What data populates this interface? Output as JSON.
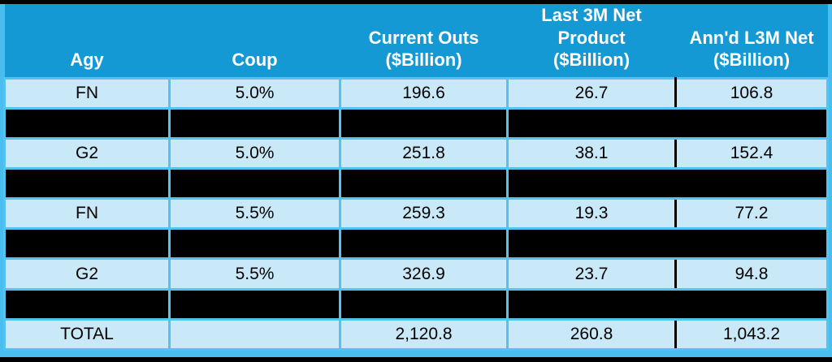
{
  "table": {
    "columns": [
      {
        "key": "agy",
        "label": "Agy"
      },
      {
        "key": "coup",
        "label": "Coup"
      },
      {
        "key": "current-outs",
        "label": "Current Outs\n($Billion)"
      },
      {
        "key": "last-3m-net",
        "label": "Last 3M Net\nProduct\n($Billion)"
      },
      {
        "key": "annd-l3m-net",
        "label": "Ann'd L3M Net\n($Billion)"
      }
    ],
    "rows": [
      {
        "type": "data",
        "cells": [
          "FN",
          "5.0%",
          "196.6",
          "26.7",
          "106.8"
        ]
      },
      {
        "type": "redacted",
        "cells": [
          "",
          "",
          "",
          "",
          ""
        ]
      },
      {
        "type": "data",
        "cells": [
          "G2",
          "5.0%",
          "251.8",
          "38.1",
          "152.4"
        ]
      },
      {
        "type": "redacted",
        "cells": [
          "",
          "",
          "",
          "",
          ""
        ]
      },
      {
        "type": "data",
        "cells": [
          "FN",
          "5.5%",
          "259.3",
          "19.3",
          "77.2"
        ]
      },
      {
        "type": "redacted",
        "cells": [
          "",
          "",
          "",
          "",
          ""
        ]
      },
      {
        "type": "data",
        "cells": [
          "G2",
          "5.5%",
          "326.9",
          "23.7",
          "94.8"
        ]
      },
      {
        "type": "redacted",
        "cells": [
          "",
          "",
          "",
          "",
          ""
        ]
      },
      {
        "type": "total",
        "cells": [
          "TOTAL",
          "",
          "2,120.8",
          "260.8",
          "1,043.2"
        ]
      }
    ],
    "colors": {
      "header_bg": "#1599D5",
      "header_text": "#FFFFFF",
      "row_bg": "#C9E9F8",
      "grid_blue": "#55C3F0",
      "redacted_black": "#000000",
      "outer_strip_blue": "#49BEEE",
      "body_text": "#000000"
    }
  },
  "chart_data": {
    "type": "table",
    "columns": [
      "Agy",
      "Coup",
      "Current Outs ($Billion)",
      "Last 3M Net Product ($Billion)",
      "Ann'd L3M Net ($Billion)"
    ],
    "rows": [
      {
        "agy": "FN",
        "coup": "5.0%",
        "current_outs_bn": 196.6,
        "last_3m_net_product_bn": 26.7,
        "annd_l3m_net_bn": 106.8
      },
      {
        "agy": null,
        "coup": null,
        "current_outs_bn": null,
        "last_3m_net_product_bn": null,
        "annd_l3m_net_bn": null,
        "redacted": true
      },
      {
        "agy": "G2",
        "coup": "5.0%",
        "current_outs_bn": 251.8,
        "last_3m_net_product_bn": 38.1,
        "annd_l3m_net_bn": 152.4
      },
      {
        "agy": null,
        "coup": null,
        "current_outs_bn": null,
        "last_3m_net_product_bn": null,
        "annd_l3m_net_bn": null,
        "redacted": true
      },
      {
        "agy": "FN",
        "coup": "5.5%",
        "current_outs_bn": 259.3,
        "last_3m_net_product_bn": 19.3,
        "annd_l3m_net_bn": 77.2
      },
      {
        "agy": null,
        "coup": null,
        "current_outs_bn": null,
        "last_3m_net_product_bn": null,
        "annd_l3m_net_bn": null,
        "redacted": true
      },
      {
        "agy": "G2",
        "coup": "5.5%",
        "current_outs_bn": 326.9,
        "last_3m_net_product_bn": 23.7,
        "annd_l3m_net_bn": 94.8
      },
      {
        "agy": null,
        "coup": null,
        "current_outs_bn": null,
        "last_3m_net_product_bn": null,
        "annd_l3m_net_bn": null,
        "redacted": true
      },
      {
        "agy": "TOTAL",
        "coup": "",
        "current_outs_bn": 2120.8,
        "last_3m_net_product_bn": 260.8,
        "annd_l3m_net_bn": 1043.2
      }
    ]
  }
}
